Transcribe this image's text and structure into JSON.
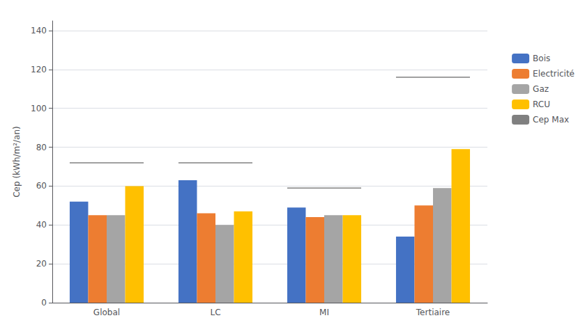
{
  "chart_data": {
    "type": "bar",
    "categories": [
      "Global",
      "LC",
      "MI",
      "Tertiaire"
    ],
    "series": [
      {
        "name": "Bois",
        "color": "#4472c4",
        "values": [
          52,
          63,
          49,
          34
        ]
      },
      {
        "name": "Electricité",
        "color": "#ed7d31",
        "values": [
          45,
          46,
          44,
          50
        ]
      },
      {
        "name": "Gaz",
        "color": "#a5a5a5",
        "values": [
          45,
          40,
          45,
          59
        ]
      },
      {
        "name": "RCU",
        "color": "#ffc000",
        "values": [
          60,
          47,
          45,
          79
        ]
      },
      {
        "name": "Cep Max",
        "color": "#808080",
        "type": "line",
        "values": [
          72,
          72,
          59,
          116
        ]
      }
    ],
    "ylabel": "Cep (kWh/m²/an)",
    "ylim": [
      0,
      145
    ],
    "yticks": [
      0,
      20,
      40,
      60,
      80,
      100,
      120,
      140
    ],
    "grid": true,
    "legend": "right"
  }
}
